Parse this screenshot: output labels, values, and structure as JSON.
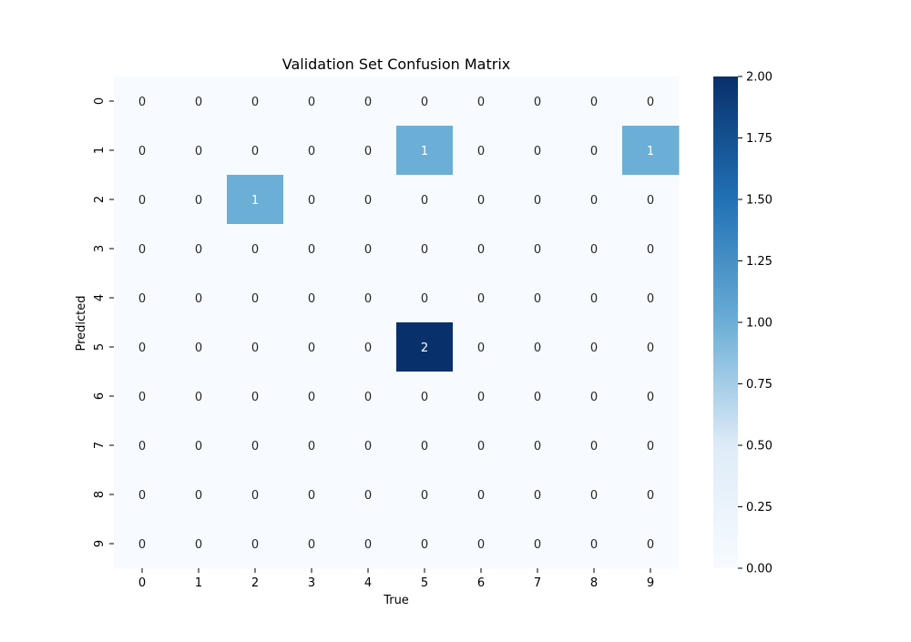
{
  "chart_data": {
    "type": "heatmap",
    "title": "Validation Set Confusion Matrix",
    "xlabel": "True",
    "ylabel": "Predicted",
    "x_categories": [
      "0",
      "1",
      "2",
      "3",
      "4",
      "5",
      "6",
      "7",
      "8",
      "9"
    ],
    "y_categories": [
      "0",
      "1",
      "2",
      "3",
      "4",
      "5",
      "6",
      "7",
      "8",
      "9"
    ],
    "values": [
      [
        0,
        0,
        0,
        0,
        0,
        0,
        0,
        0,
        0,
        0
      ],
      [
        0,
        0,
        0,
        0,
        0,
        1,
        0,
        0,
        0,
        1
      ],
      [
        0,
        0,
        1,
        0,
        0,
        0,
        0,
        0,
        0,
        0
      ],
      [
        0,
        0,
        0,
        0,
        0,
        0,
        0,
        0,
        0,
        0
      ],
      [
        0,
        0,
        0,
        0,
        0,
        0,
        0,
        0,
        0,
        0
      ],
      [
        0,
        0,
        0,
        0,
        0,
        2,
        0,
        0,
        0,
        0
      ],
      [
        0,
        0,
        0,
        0,
        0,
        0,
        0,
        0,
        0,
        0
      ],
      [
        0,
        0,
        0,
        0,
        0,
        0,
        0,
        0,
        0,
        0
      ],
      [
        0,
        0,
        0,
        0,
        0,
        0,
        0,
        0,
        0,
        0
      ],
      [
        0,
        0,
        0,
        0,
        0,
        0,
        0,
        0,
        0,
        0
      ]
    ],
    "colorbar": {
      "range": [
        0,
        2
      ],
      "ticks": [
        "0.00",
        "0.25",
        "0.50",
        "0.75",
        "1.00",
        "1.25",
        "1.50",
        "1.75",
        "2.00"
      ],
      "colormap": "Blues",
      "low_color": "#f7fbff",
      "mid_color": "#6baed6",
      "high_color": "#08306b"
    },
    "grid": false,
    "legend": "colorbar-right"
  }
}
